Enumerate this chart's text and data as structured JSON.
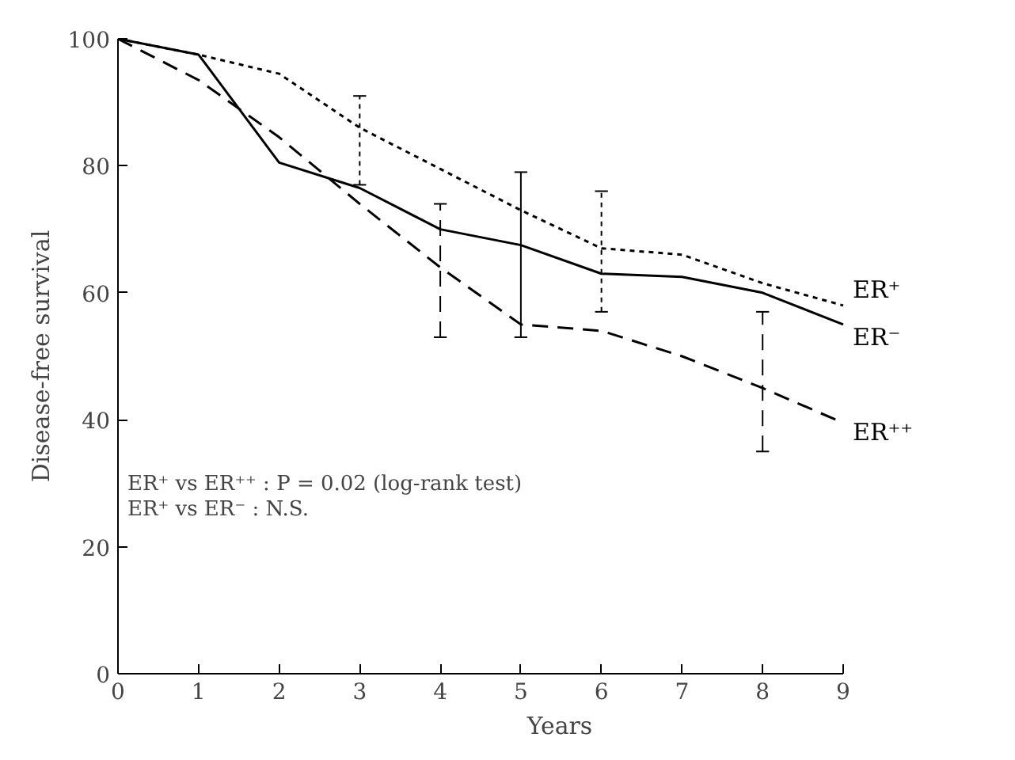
{
  "chart_data": {
    "type": "line",
    "xlabel": "Years",
    "ylabel": "Disease-free survival",
    "x": [
      0,
      1,
      2,
      3,
      4,
      5,
      6,
      7,
      8,
      9
    ],
    "series": [
      {
        "name": "ER⁺",
        "color": "#000000",
        "line_style": "dotted",
        "values": [
          100,
          97.5,
          94.5,
          86,
          79.5,
          73,
          67,
          66,
          61.5,
          58
        ],
        "errors": [
          null,
          null,
          null,
          [
            77,
            91
          ],
          null,
          null,
          [
            57,
            76
          ],
          null,
          null,
          null
        ]
      },
      {
        "name": "ER⁻",
        "color": "#000000",
        "line_style": "solid",
        "values": [
          100,
          97.5,
          80.5,
          76.5,
          70,
          67.5,
          63,
          62.5,
          60,
          55
        ],
        "errors": [
          null,
          null,
          null,
          null,
          null,
          [
            53,
            79
          ],
          null,
          null,
          null,
          null
        ]
      },
      {
        "name": "ER⁺⁺",
        "color": "#000000",
        "line_style": "dashed",
        "values": [
          100,
          93.5,
          84.5,
          74,
          64,
          55,
          54,
          50,
          45,
          39.5
        ],
        "errors": [
          null,
          null,
          null,
          null,
          [
            53,
            74
          ],
          null,
          null,
          null,
          [
            35,
            57
          ],
          null
        ]
      }
    ],
    "xlim": [
      0,
      9
    ],
    "ylim": [
      0,
      100
    ],
    "xticks": [
      0,
      1,
      2,
      3,
      4,
      5,
      6,
      7,
      8,
      9
    ],
    "yticks": [
      0,
      20,
      40,
      60,
      80,
      100
    ],
    "grid": false,
    "legend": false,
    "marker": "none",
    "annotations": [
      "ER⁺ vs ER⁺⁺ : P = 0.02 (log-rank test)",
      "ER⁺ vs ER⁻ : N.S."
    ]
  }
}
